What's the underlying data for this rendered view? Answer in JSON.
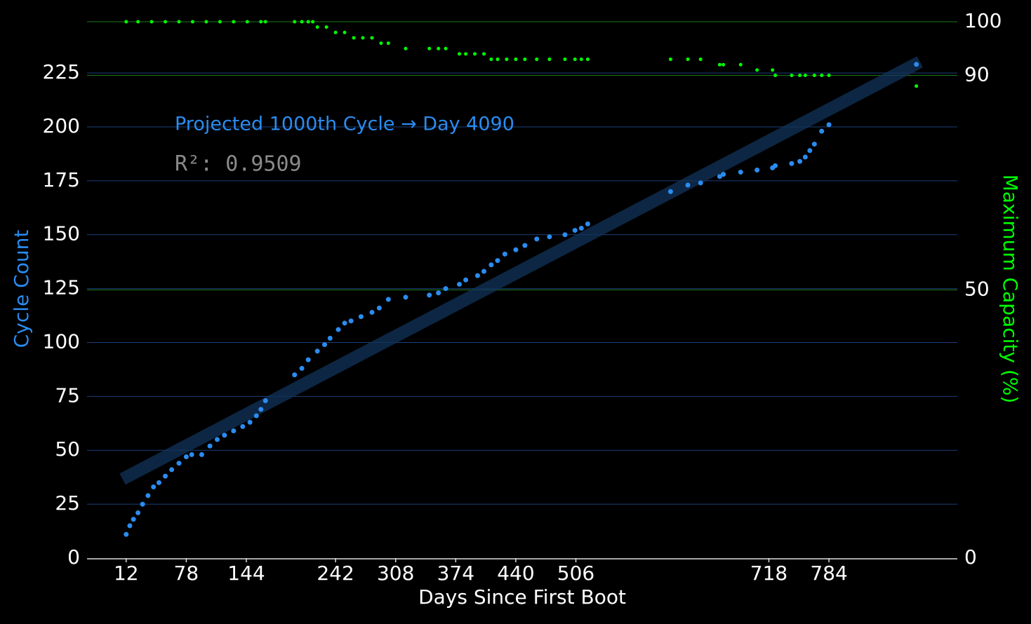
{
  "chart_data": {
    "type": "scatter",
    "xlabel": "Days Since First Boot",
    "ylabel": "Cycle Count",
    "y2label": "Maximum Capacity (%)",
    "annotation": "Projected 1000th Cycle → Day 4090",
    "r2_label": "R²: 0.9509",
    "xlim": [
      -31,
      925
    ],
    "ylim": [
      0,
      253
    ],
    "y2lim": [
      0,
      101.7
    ],
    "xticks": [
      12,
      78,
      144,
      242,
      308,
      374,
      440,
      506,
      718,
      784
    ],
    "yticks": [
      0,
      25,
      50,
      75,
      100,
      125,
      150,
      175,
      200,
      225
    ],
    "y2ticks": [
      0,
      50,
      90,
      100
    ],
    "grid": true,
    "series": [
      {
        "color": "#2a8cf0",
        "x": [
          12,
          16,
          20,
          25,
          30,
          36,
          42,
          48,
          55,
          62,
          70,
          78,
          84,
          95,
          104,
          112,
          120,
          130,
          140,
          148,
          155,
          160,
          165,
          197,
          205,
          212,
          222,
          230,
          236,
          245,
          252,
          259,
          270,
          282,
          290,
          300,
          319,
          345,
          355,
          363,
          378,
          385,
          398,
          405,
          413,
          420,
          428,
          440,
          450,
          463,
          477,
          494,
          505,
          512,
          519,
          610,
          629,
          643,
          664,
          668,
          687,
          705,
          722,
          725,
          743,
          752,
          758,
          763,
          768,
          776,
          784,
          880
        ],
        "values": [
          11,
          15,
          18,
          21,
          25,
          29,
          33,
          35,
          38,
          41,
          44,
          47,
          48,
          48,
          52,
          55,
          57,
          59,
          61,
          63,
          66,
          69,
          73,
          85,
          88,
          92,
          96,
          99,
          102,
          106,
          109,
          110,
          112,
          114,
          116,
          120,
          121,
          122,
          123,
          125,
          127,
          129,
          131,
          133,
          136,
          138,
          141,
          143,
          145,
          148,
          149,
          150,
          152,
          153,
          155,
          170,
          173,
          174,
          177,
          178,
          179,
          180,
          181,
          182,
          183,
          184,
          186,
          189,
          192,
          198,
          201,
          229
        ]
      },
      {
        "color": "#00ff00",
        "axis": "y2",
        "x": [
          12,
          25,
          40,
          55,
          70,
          85,
          100,
          115,
          130,
          145,
          160,
          165,
          197,
          205,
          212,
          217,
          222,
          232,
          242,
          252,
          262,
          272,
          282,
          292,
          300,
          319,
          345,
          355,
          363,
          378,
          385,
          395,
          405,
          413,
          420,
          430,
          440,
          450,
          463,
          477,
          494,
          505,
          512,
          519,
          610,
          629,
          643,
          664,
          668,
          687,
          705,
          722,
          725,
          743,
          752,
          758,
          768,
          776,
          784,
          880
        ],
        "values": [
          100,
          100,
          100,
          100,
          100,
          100,
          100,
          100,
          100,
          100,
          100,
          100,
          100,
          100,
          100,
          100,
          99,
          99,
          98,
          98,
          97,
          97,
          97,
          96,
          96,
          95,
          95,
          95,
          95,
          94,
          94,
          94,
          94,
          93,
          93,
          93,
          93,
          93,
          93,
          93,
          93,
          93,
          93,
          93,
          93,
          93,
          93,
          92,
          92,
          92,
          91,
          91,
          90,
          90,
          90,
          90,
          90,
          90,
          90,
          88
        ]
      }
    ]
  }
}
